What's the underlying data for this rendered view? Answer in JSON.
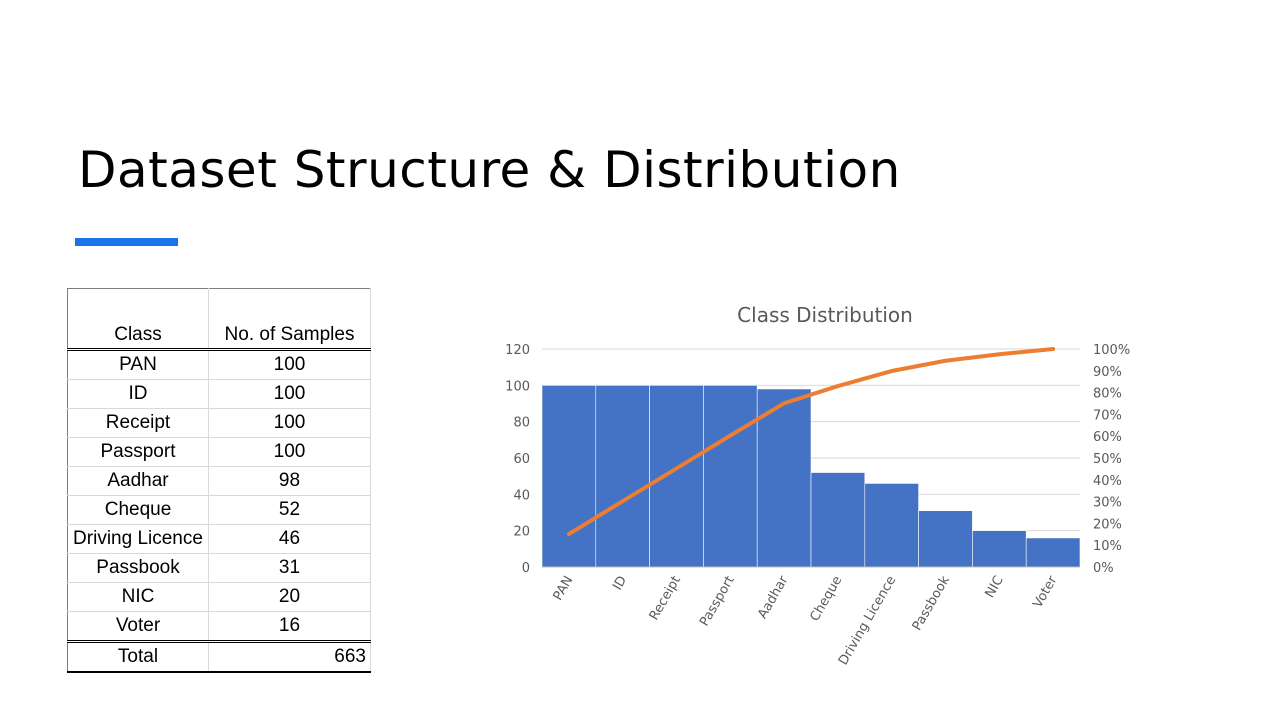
{
  "slide": {
    "title": "Dataset Structure & Distribution",
    "accent_color": "#1a73e8"
  },
  "table": {
    "headers": [
      "Class",
      "No. of Samples"
    ],
    "rows": [
      [
        "PAN",
        "100"
      ],
      [
        "ID",
        "100"
      ],
      [
        "Receipt",
        "100"
      ],
      [
        "Passport",
        "100"
      ],
      [
        "Aadhar",
        "98"
      ],
      [
        "Cheque",
        "52"
      ],
      [
        "Driving Licence",
        "46"
      ],
      [
        "Passbook",
        "31"
      ],
      [
        "NIC",
        "20"
      ],
      [
        "Voter",
        "16"
      ]
    ],
    "total_label": "Total",
    "total_value": "663"
  },
  "chart_data": {
    "type": "bar",
    "title": "Class Distribution",
    "categories": [
      "PAN",
      "ID",
      "Receipt",
      "Passport",
      "Aadhar",
      "Cheque",
      "Driving Licence",
      "Passbook",
      "NIC",
      "Voter"
    ],
    "series": [
      {
        "type": "bar",
        "values": [
          100,
          100,
          100,
          100,
          98,
          52,
          46,
          31,
          20,
          16
        ],
        "axis": "left",
        "color": "#4472c4"
      },
      {
        "type": "line",
        "values": [
          15.1,
          30.2,
          45.2,
          60.3,
          75.1,
          83.0,
          89.9,
          94.6,
          97.6,
          100.0
        ],
        "axis": "right",
        "unit": "%",
        "color": "#ed7d31"
      }
    ],
    "y_left": {
      "range": [
        0,
        120
      ],
      "ticks": [
        "0",
        "20",
        "40",
        "60",
        "80",
        "100",
        "120"
      ]
    },
    "y_right": {
      "range": [
        0,
        100
      ],
      "ticks": [
        "0%",
        "10%",
        "20%",
        "30%",
        "40%",
        "50%",
        "60%",
        "70%",
        "80%",
        "90%",
        "100%"
      ]
    },
    "grid": true,
    "legend": "none"
  }
}
